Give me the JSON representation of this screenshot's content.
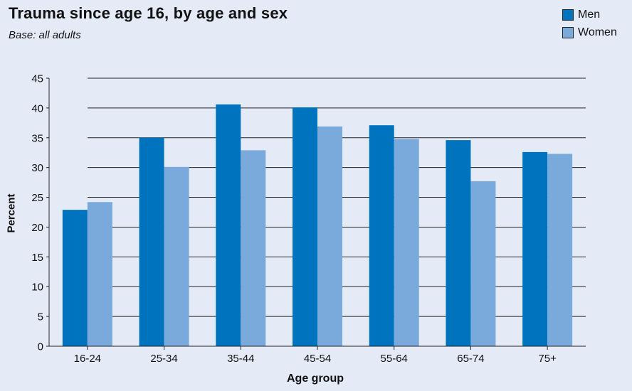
{
  "colors": {
    "men": "#0073be",
    "women": "#7aaadb",
    "background": "#e4ebf7",
    "grid": "#222222"
  },
  "chart_data": {
    "type": "bar",
    "title": "Trauma since age 16, by age and sex",
    "subtitle": "Base: all adults",
    "xlabel": "Age group",
    "ylabel": "Percent",
    "ylim": [
      0,
      45
    ],
    "yticks": [
      0,
      5,
      10,
      15,
      20,
      25,
      30,
      35,
      40,
      45
    ],
    "grid": true,
    "legend_position": "top-right",
    "categories": [
      "16-24",
      "25-34",
      "35-44",
      "45-54",
      "55-64",
      "65-74",
      "75+"
    ],
    "series": [
      {
        "name": "Men",
        "values": [
          22.9,
          35.0,
          40.6,
          40.1,
          37.1,
          34.6,
          32.6
        ]
      },
      {
        "name": "Women",
        "values": [
          24.2,
          30.1,
          32.9,
          36.9,
          34.8,
          27.7,
          32.3
        ]
      }
    ]
  }
}
